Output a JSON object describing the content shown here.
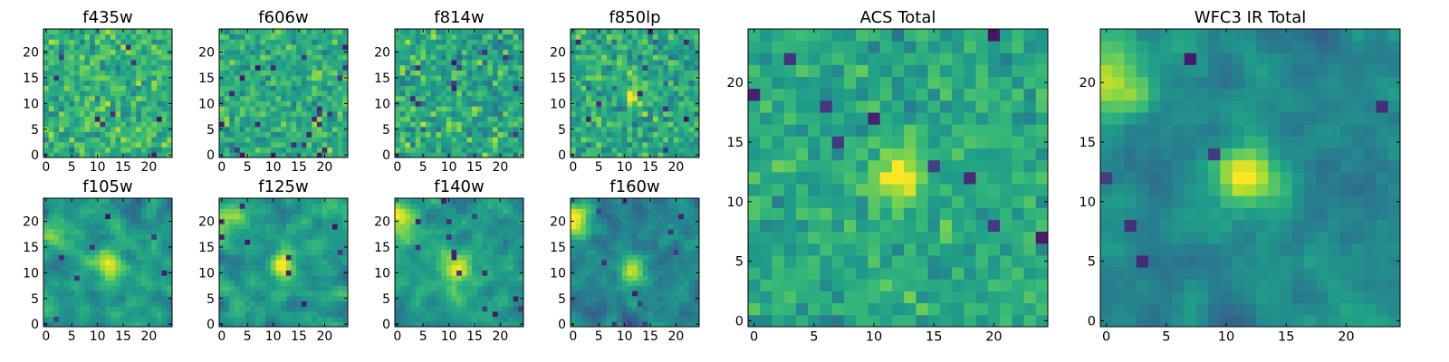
{
  "figure": {
    "background": "#ffffff",
    "colormap": "viridis"
  },
  "chart_data": [
    {
      "type": "heatmap",
      "title": "f435w",
      "grid": [
        25,
        25
      ],
      "xlim": [
        -0.5,
        24.5
      ],
      "ylim": [
        -0.5,
        24.5
      ],
      "xticks": [
        0,
        5,
        10,
        15,
        20
      ],
      "yticks": [
        0,
        5,
        10,
        15,
        20
      ],
      "texture": "noise",
      "seed": 11,
      "mean": 0.64,
      "spread": 0.2,
      "smooth": 0,
      "peaks": []
    },
    {
      "type": "heatmap",
      "title": "f606w",
      "grid": [
        25,
        25
      ],
      "xlim": [
        -0.5,
        24.5
      ],
      "ylim": [
        -0.5,
        24.5
      ],
      "xticks": [
        0,
        5,
        10,
        15,
        20
      ],
      "yticks": [
        0,
        5,
        10,
        15,
        20
      ],
      "texture": "noise",
      "seed": 23,
      "mean": 0.62,
      "spread": 0.18,
      "smooth": 0,
      "peaks": []
    },
    {
      "type": "heatmap",
      "title": "f814w",
      "grid": [
        25,
        25
      ],
      "xlim": [
        -0.5,
        24.5
      ],
      "ylim": [
        -0.5,
        24.5
      ],
      "xticks": [
        0,
        5,
        10,
        15,
        20
      ],
      "yticks": [
        0,
        5,
        10,
        15,
        20
      ],
      "texture": "noise",
      "seed": 37,
      "mean": 0.6,
      "spread": 0.22,
      "smooth": 0,
      "peaks": []
    },
    {
      "type": "heatmap",
      "title": "f850lp",
      "grid": [
        25,
        25
      ],
      "xlim": [
        -0.5,
        24.5
      ],
      "ylim": [
        -0.5,
        24.5
      ],
      "xticks": [
        0,
        5,
        10,
        15,
        20
      ],
      "yticks": [
        0,
        5,
        10,
        15,
        20
      ],
      "texture": "noise",
      "seed": 41,
      "mean": 0.6,
      "spread": 0.2,
      "smooth": 0,
      "peaks": [
        [
          12,
          12,
          1.5,
          0.25
        ]
      ]
    },
    {
      "type": "heatmap",
      "title": "f105w",
      "grid": [
        25,
        25
      ],
      "xlim": [
        -0.5,
        24.5
      ],
      "ylim": [
        -0.5,
        24.5
      ],
      "xticks": [
        0,
        5,
        10,
        15,
        20
      ],
      "yticks": [
        0,
        5,
        10,
        15,
        20
      ],
      "texture": "smooth",
      "seed": 53,
      "mean": 0.55,
      "spread": 0.2,
      "smooth": 1,
      "peaks": [
        [
          12,
          11,
          2.0,
          0.35
        ],
        [
          2,
          18,
          2.0,
          0.2
        ]
      ]
    },
    {
      "type": "heatmap",
      "title": "f125w",
      "grid": [
        25,
        25
      ],
      "xlim": [
        -0.5,
        24.5
      ],
      "ylim": [
        -0.5,
        24.5
      ],
      "xticks": [
        0,
        5,
        10,
        15,
        20
      ],
      "yticks": [
        0,
        5,
        10,
        15,
        20
      ],
      "texture": "smooth",
      "seed": 67,
      "mean": 0.55,
      "spread": 0.2,
      "smooth": 1,
      "peaks": [
        [
          12,
          11,
          2.0,
          0.4
        ],
        [
          0,
          20,
          2.5,
          0.35
        ]
      ]
    },
    {
      "type": "heatmap",
      "title": "f140w",
      "grid": [
        25,
        25
      ],
      "xlim": [
        -0.5,
        24.5
      ],
      "ylim": [
        -0.5,
        24.5
      ],
      "xticks": [
        0,
        5,
        10,
        15,
        20
      ],
      "yticks": [
        0,
        5,
        10,
        15,
        20
      ],
      "texture": "smooth",
      "seed": 79,
      "mean": 0.55,
      "spread": 0.2,
      "smooth": 1,
      "peaks": [
        [
          12,
          11,
          2.0,
          0.4
        ],
        [
          0,
          20,
          2.5,
          0.4
        ]
      ]
    },
    {
      "type": "heatmap",
      "title": "f160w",
      "grid": [
        25,
        25
      ],
      "xlim": [
        -0.5,
        24.5
      ],
      "ylim": [
        -0.5,
        24.5
      ],
      "xticks": [
        0,
        5,
        10,
        15,
        20
      ],
      "yticks": [
        0,
        5,
        10,
        15,
        20
      ],
      "texture": "smooth",
      "seed": 83,
      "mean": 0.45,
      "spread": 0.2,
      "smooth": 1,
      "peaks": [
        [
          12,
          11,
          2.0,
          0.45
        ],
        [
          0,
          20,
          3.0,
          0.45
        ]
      ]
    },
    {
      "type": "heatmap",
      "title": "ACS Total",
      "grid": [
        25,
        25
      ],
      "xlim": [
        -0.5,
        24.5
      ],
      "ylim": [
        -0.5,
        24.5
      ],
      "xticks": [
        0,
        5,
        10,
        15,
        20
      ],
      "yticks": [
        0,
        5,
        10,
        15,
        20
      ],
      "texture": "noise",
      "seed": 97,
      "mean": 0.6,
      "spread": 0.14,
      "smooth": 0,
      "peaks": [
        [
          12,
          12,
          1.5,
          0.4
        ]
      ]
    },
    {
      "type": "heatmap",
      "title": "WFC3 IR Total",
      "grid": [
        25,
        25
      ],
      "xlim": [
        -0.5,
        24.5
      ],
      "ylim": [
        -0.5,
        24.5
      ],
      "xticks": [
        0,
        5,
        10,
        15,
        20
      ],
      "yticks": [
        0,
        5,
        10,
        15,
        20
      ],
      "texture": "smooth",
      "seed": 101,
      "mean": 0.48,
      "spread": 0.16,
      "smooth": 1,
      "peaks": [
        [
          12,
          12,
          1.8,
          0.5
        ],
        [
          0,
          20,
          2.5,
          0.45
        ]
      ]
    }
  ]
}
